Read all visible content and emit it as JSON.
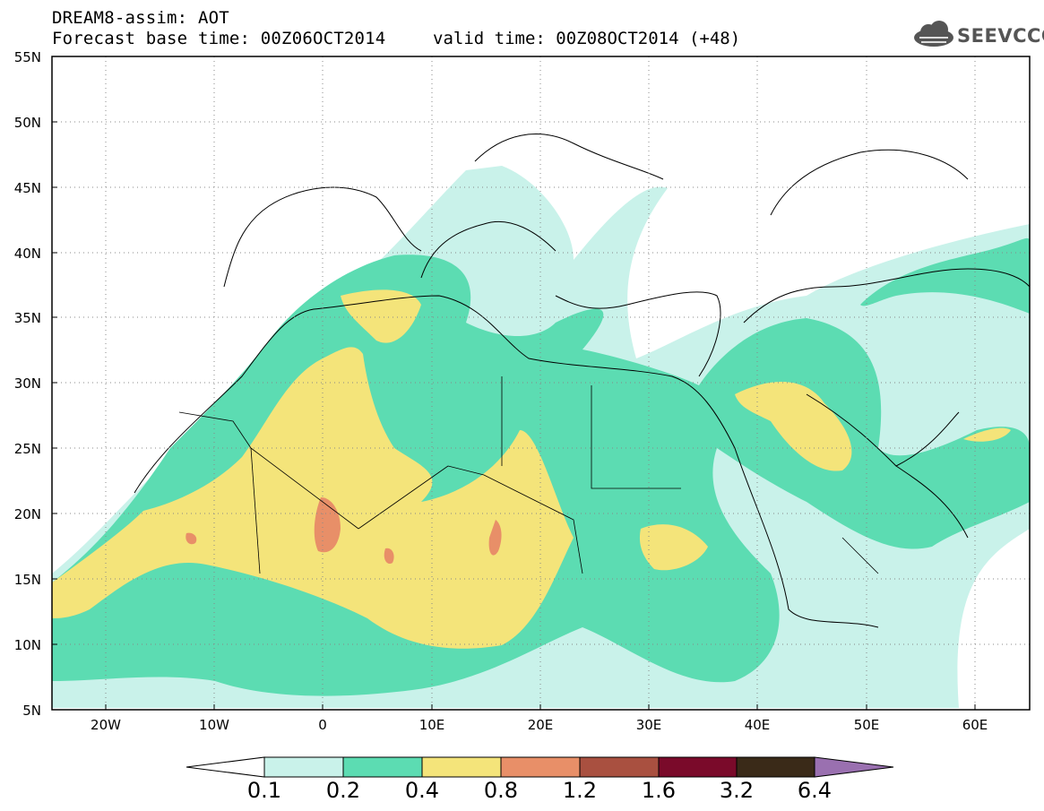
{
  "header": {
    "model_line": "DREAM8-assim: AOT",
    "base_time_line": "Forecast base time: 00Z06OCT2014",
    "valid_time_line": "valid time: 00Z08OCT2014 (+48)"
  },
  "logo": {
    "text": "SEEVCCC",
    "icon": "cloud-icon"
  },
  "map": {
    "lat_labels": [
      "55N",
      "50N",
      "45N",
      "40N",
      "35N",
      "30N",
      "25N",
      "20N",
      "15N",
      "10N",
      "5N"
    ],
    "lon_labels": [
      "20W",
      "10W",
      "0",
      "10E",
      "20E",
      "30E",
      "40E",
      "50E",
      "60E"
    ],
    "grid": "dotted",
    "colors": {
      "c01": "#c9f2ea",
      "c02": "#5cdcb2",
      "c04": "#f4e47a",
      "c08": "#e88f68",
      "border": "#000000"
    }
  },
  "colorbar": {
    "levels": [
      "0.1",
      "0.2",
      "0.4",
      "0.8",
      "1.2",
      "1.6",
      "3.2",
      "6.4"
    ],
    "colors": [
      "#ffffff",
      "#c9f2ea",
      "#5cdcb2",
      "#f4e47a",
      "#e88f68",
      "#a95040",
      "#7a0a2a",
      "#3a2a18",
      "#9a70b0"
    ]
  }
}
